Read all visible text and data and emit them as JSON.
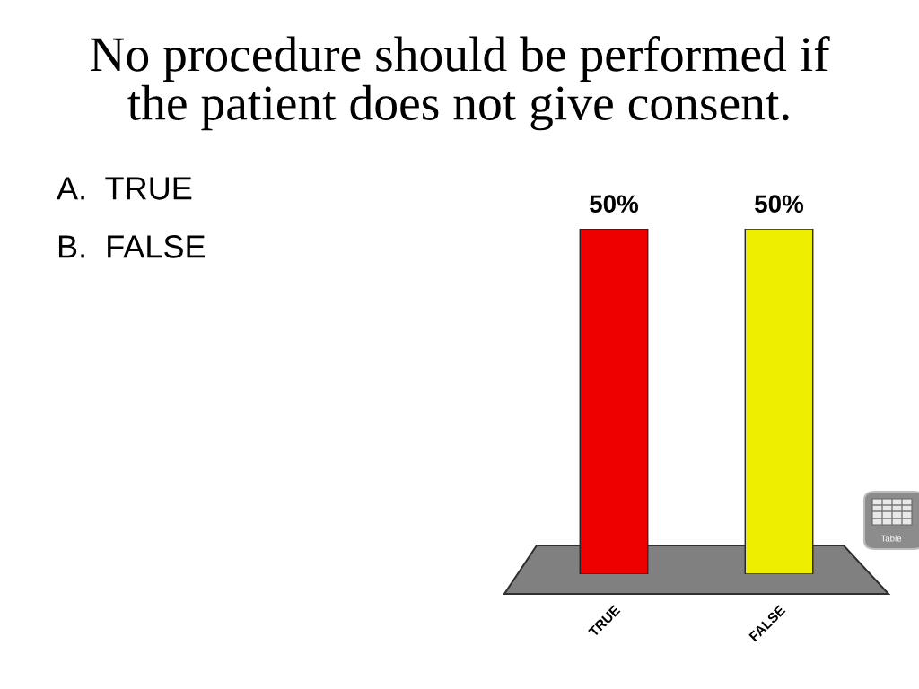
{
  "chart_data": {
    "type": "bar",
    "title": "No procedure should be performed if\nthe patient does not give consent.",
    "categories": [
      "TRUE",
      "FALSE"
    ],
    "values": [
      50,
      50
    ],
    "colors": [
      "#ee0000",
      "#eeee00"
    ],
    "value_labels": [
      "50%",
      "50%"
    ],
    "ylim": [
      0,
      50
    ],
    "tick_labels": "x",
    "annotations": [
      "A.  TRUE",
      "B.  FALSE",
      "Table"
    ]
  }
}
